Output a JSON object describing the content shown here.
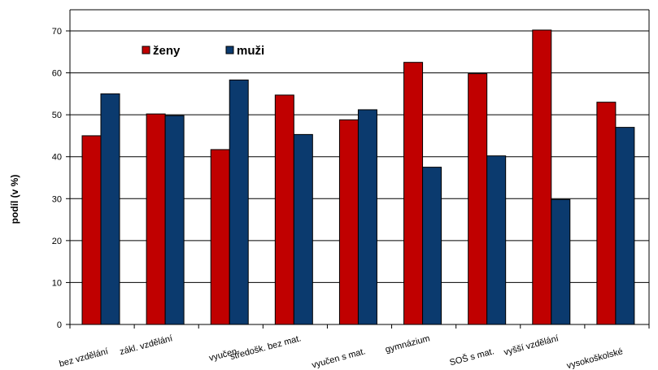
{
  "chart_data": {
    "type": "bar",
    "ylabel": "podíl (v %)",
    "ylim": [
      0,
      70
    ],
    "yticks": [
      0,
      10,
      20,
      30,
      40,
      50,
      60,
      70
    ],
    "grid": true,
    "legend_position": "top-left",
    "categories": [
      "bez vzdělání",
      "zákl. vzdělání",
      "vyučen",
      "středošk. bez mat.",
      "vyučen s mat.",
      "gymnázium",
      "SOŠ s mat.",
      "vyšší vzdělání",
      "vysokoškolské"
    ],
    "series": [
      {
        "name": "ženy",
        "color": "#c00000",
        "values": [
          45,
          50.2,
          41.7,
          54.7,
          48.8,
          62.5,
          59.8,
          70.2,
          53
        ]
      },
      {
        "name": "muži",
        "color": "#0b3a6e",
        "values": [
          55,
          49.8,
          58.3,
          45.3,
          51.2,
          37.5,
          40.2,
          29.8,
          47
        ]
      }
    ]
  }
}
